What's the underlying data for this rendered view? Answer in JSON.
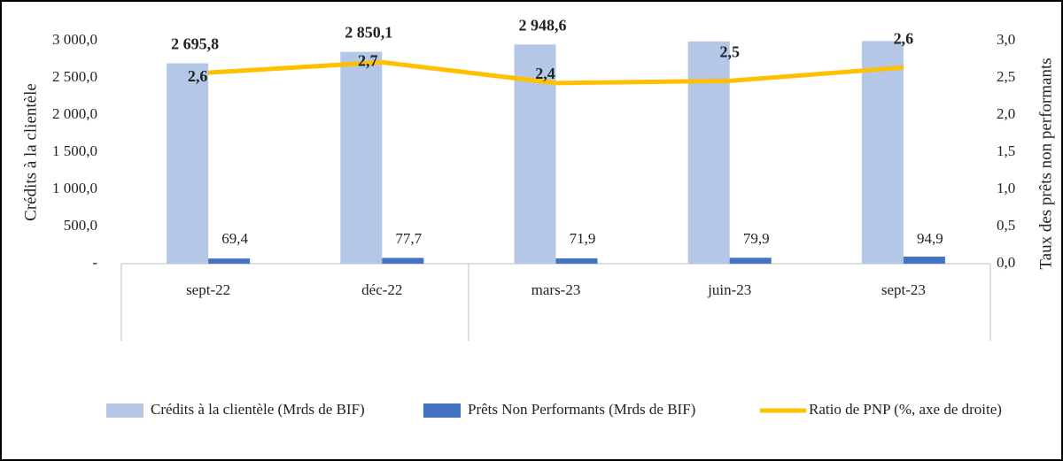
{
  "chart_data": {
    "type": "bar",
    "y_label": "Crédits à la clientèle",
    "y2_label": "Taux des prêts non performants",
    "categories": [
      "sept-22",
      "déc-22",
      "mars-23",
      "juin-23",
      "sept-23"
    ],
    "series": [
      {
        "name": "Crédits à la clientèle (Mrds de BIF)",
        "color": "#b4c7e7",
        "type": "bar",
        "values": [
          2695.8,
          2850.1,
          2948.6,
          2990,
          2995
        ],
        "value_labels": [
          "2 695,8",
          "2 850,1",
          "2 948,6",
          null,
          null
        ]
      },
      {
        "name": "Prêts Non Performants (Mrds de BIF)",
        "color": "#4472c4",
        "type": "bar",
        "values": [
          69.4,
          77.7,
          71.9,
          79.9,
          94.9
        ],
        "value_labels": [
          "69,4",
          "77,7",
          "71,9",
          "79,9",
          "94,9"
        ]
      },
      {
        "name": "Ratio de PNP (%, axe de droite)",
        "color": "#ffc000",
        "type": "line",
        "axis": "y2",
        "values": [
          2.57,
          2.71,
          2.43,
          2.46,
          2.64
        ],
        "value_labels": [
          "2,6",
          "2,7",
          "2,4",
          "2,5",
          "2,6"
        ]
      }
    ],
    "ylim": [
      0,
      3000
    ],
    "yticks": [
      {
        "value": 0,
        "label": "-"
      },
      {
        "value": 500,
        "label": "500,0"
      },
      {
        "value": 1000,
        "label": "1 000,0"
      },
      {
        "value": 1500,
        "label": "1 500,0"
      },
      {
        "value": 2000,
        "label": "2 000,0"
      },
      {
        "value": 2500,
        "label": "2 500,0"
      },
      {
        "value": 3000,
        "label": "3 000,0"
      }
    ],
    "y2lim": [
      0,
      3
    ],
    "y2ticks": [
      {
        "value": 0,
        "label": "0,0"
      },
      {
        "value": 0.5,
        "label": "0,5"
      },
      {
        "value": 1,
        "label": "1,0"
      },
      {
        "value": 1.5,
        "label": "1,5"
      },
      {
        "value": 2,
        "label": "2,0"
      },
      {
        "value": 2.5,
        "label": "2,5"
      },
      {
        "value": 3,
        "label": "3,0"
      }
    ],
    "legend": "bottom"
  }
}
